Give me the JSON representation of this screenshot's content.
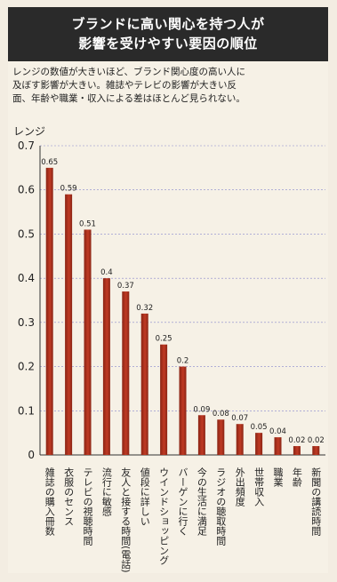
{
  "header": {
    "title_line1": "ブランドに高い関心を持つ人が",
    "title_line2": "影響を受けやすい要因の順位"
  },
  "description": {
    "line1": "レンジの数値が大きいほど、ブランド関心度の高い人に",
    "line2": "及ぼす影響が大きい。雑誌やテレビの影響が大きい反",
    "line3": "面、年齢や職業・収入による差はほとんど見られない。"
  },
  "colors": {
    "bar": "#c03a24",
    "bar_dark": "#8a2414",
    "grid": "#8888cc",
    "background": "#f6f1e6"
  },
  "chart_data": {
    "type": "bar",
    "ylabel": "レンジ",
    "ylim": [
      0,
      0.7
    ],
    "yticks": [
      "0",
      "0.1",
      "0.2",
      "0.3",
      "0.4",
      "0.5",
      "0.6",
      "0.7"
    ],
    "grid": true,
    "categories": [
      "雑誌の購入冊数",
      "衣服のセンス",
      "テレビの視聴時間",
      "流行に敏感",
      "友人と接する時間(電話)",
      "値段に詳しい",
      "ウインドショッピング",
      "バーゲンに行く",
      "今の生活に満足",
      "ラジオの聴取時間",
      "外出頻度",
      "世帯収入",
      "職業",
      "年齢",
      "新聞の講読時間"
    ],
    "values": [
      0.65,
      0.59,
      0.51,
      0.4,
      0.37,
      0.32,
      0.25,
      0.2,
      0.09,
      0.08,
      0.07,
      0.05,
      0.04,
      0.02,
      0.02
    ],
    "value_labels": [
      "0.65",
      "0.59",
      "0.51",
      "0.4",
      "0.37",
      "0.32",
      "0.25",
      "0.2",
      "0.09",
      "0.08",
      "0.07",
      "0.05",
      "0.04",
      "0.02",
      "0.02"
    ]
  }
}
